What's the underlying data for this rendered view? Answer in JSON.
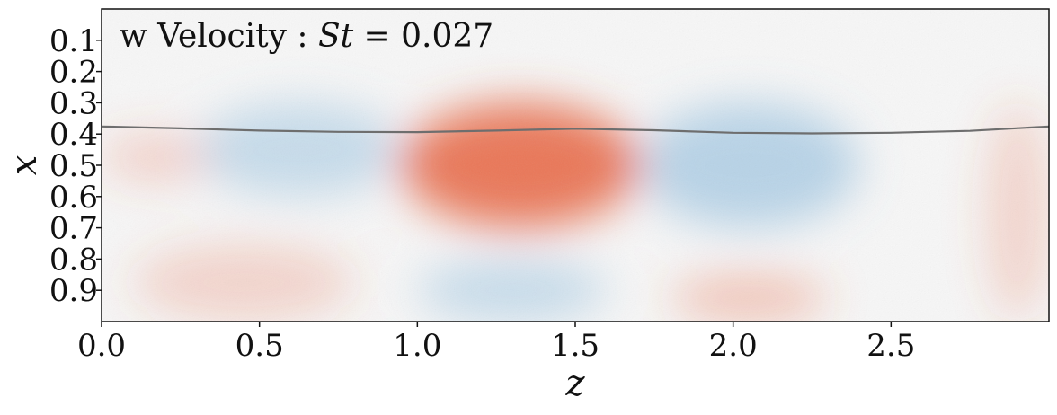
{
  "chart_data": {
    "type": "heatmap",
    "title_prefix": "w Velocity : ",
    "title_symbol": "St",
    "title_suffix": " = 0.027",
    "xlabel": "z",
    "ylabel": "x",
    "xlim": [
      0.0,
      3.0
    ],
    "ylim": [
      1.0,
      0.0
    ],
    "x_ticks": [
      0.0,
      0.5,
      1.0,
      1.5,
      2.0,
      2.5
    ],
    "x_tick_labels": [
      "0.0",
      "0.5",
      "1.0",
      "1.5",
      "2.0",
      "2.5"
    ],
    "y_ticks": [
      0.1,
      0.2,
      0.3,
      0.4,
      0.5,
      0.6,
      0.7,
      0.8,
      0.9
    ],
    "y_tick_labels": [
      "0.1",
      "0.2",
      "0.3",
      "0.4",
      "0.5",
      "0.6",
      "0.7",
      "0.8",
      "0.9"
    ],
    "colormap": "diverging blue-white-red",
    "colors": {
      "positive": "#e8603c",
      "negative": "#6aa8d4",
      "neutral": "#f7f7f7",
      "interface": "#6e6e6e"
    },
    "sign_regions": [
      {
        "z": [
          0.95,
          1.7
        ],
        "x": [
          0.3,
          0.7
        ],
        "sign": "positive",
        "intensity": 0.85
      },
      {
        "z": [
          0.3,
          0.95
        ],
        "x": [
          0.3,
          0.6
        ],
        "sign": "negative",
        "intensity": 0.35
      },
      {
        "z": [
          1.7,
          2.4
        ],
        "x": [
          0.3,
          0.7
        ],
        "sign": "negative",
        "intensity": 0.45
      },
      {
        "z": [
          0.0,
          0.35
        ],
        "x": [
          0.4,
          0.55
        ],
        "sign": "positive",
        "intensity": 0.25
      },
      {
        "z": [
          1.0,
          1.6
        ],
        "x": [
          0.8,
          1.0
        ],
        "sign": "negative",
        "intensity": 0.35
      },
      {
        "z": [
          1.8,
          2.3
        ],
        "x": [
          0.85,
          1.0
        ],
        "sign": "positive",
        "intensity": 0.35
      },
      {
        "z": [
          0.1,
          0.8
        ],
        "x": [
          0.75,
          1.0
        ],
        "sign": "positive",
        "intensity": 0.22
      },
      {
        "z": [
          2.8,
          3.0
        ],
        "x": [
          0.3,
          1.0
        ],
        "sign": "positive",
        "intensity": 0.22
      }
    ],
    "interface_line": {
      "z": [
        0.0,
        0.25,
        0.5,
        0.75,
        1.0,
        1.25,
        1.5,
        1.75,
        2.0,
        2.25,
        2.5,
        2.75,
        3.0
      ],
      "x": [
        0.376,
        0.382,
        0.389,
        0.393,
        0.394,
        0.389,
        0.383,
        0.388,
        0.396,
        0.398,
        0.396,
        0.39,
        0.376
      ]
    },
    "grid": false
  }
}
